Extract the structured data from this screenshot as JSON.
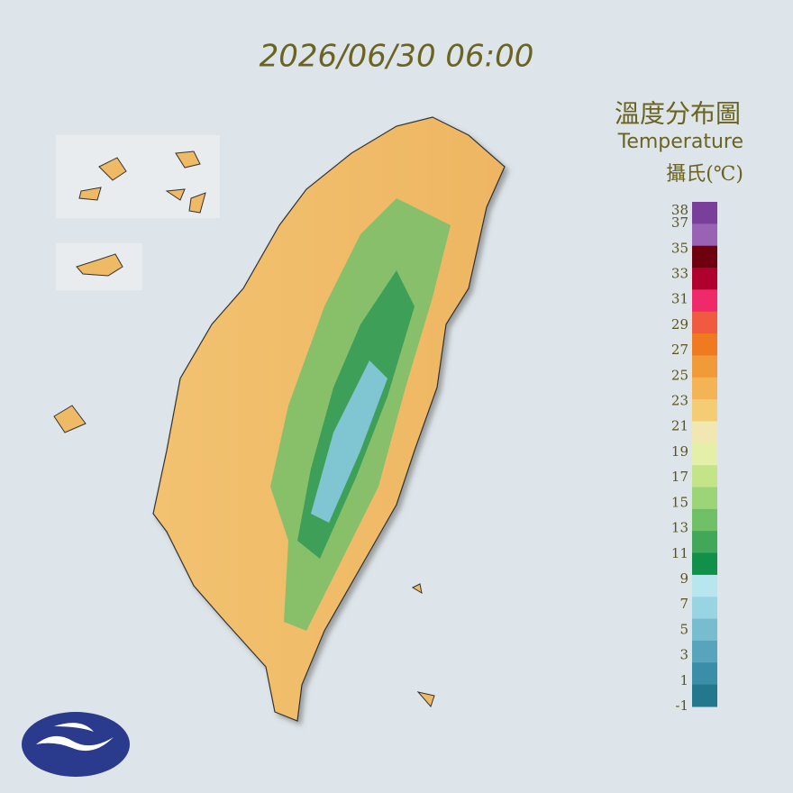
{
  "header": {
    "timestamp": "2026/06/30 06:00",
    "title": "溫度分布圖",
    "subtitle": "Temperature",
    "unit": "攝氏(℃)"
  },
  "legend": {
    "labels": [
      38,
      37,
      35,
      33,
      31,
      29,
      27,
      25,
      23,
      21,
      19,
      17,
      15,
      13,
      11,
      9,
      7,
      5,
      3,
      1,
      -1
    ],
    "colors": [
      "#7a3f9a",
      "#9a62b4",
      "#6e0010",
      "#b0002e",
      "#ee2a6a",
      "#f05a40",
      "#f07a20",
      "#f09a38",
      "#f2b454",
      "#f4cc74",
      "#f0e8b0",
      "#e4f0a8",
      "#c4e488",
      "#9cd478",
      "#70c068",
      "#40a858",
      "#109048",
      "#b8e6ee",
      "#98d4e2",
      "#78bcd0",
      "#58a4bc",
      "#3a8ea8",
      "#24788e"
    ]
  }
}
